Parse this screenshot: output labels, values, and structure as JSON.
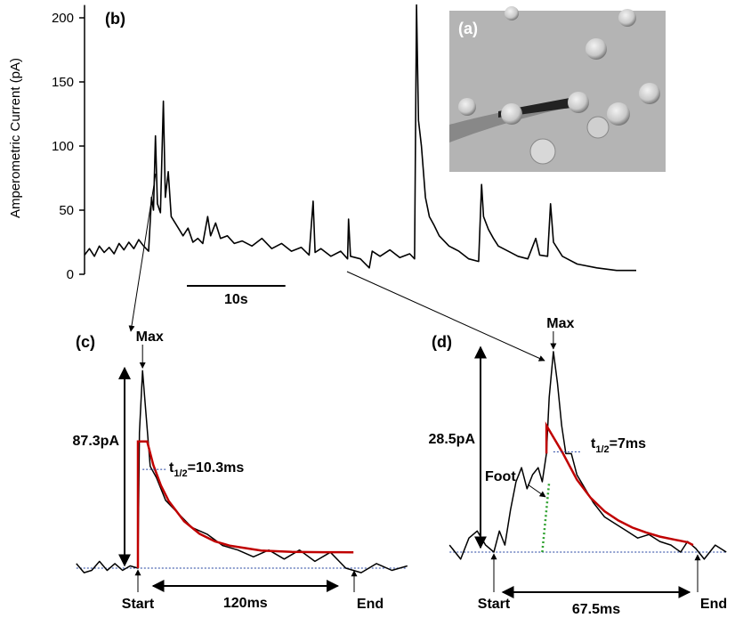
{
  "chart_data": [
    {
      "type": "line",
      "panel_label": "(b)",
      "y_label": "Amperometric Current (pA)",
      "ylim": [
        0,
        210
      ],
      "yticks": [
        0,
        50,
        100,
        150,
        200
      ],
      "xlim": [
        0,
        56
      ],
      "color": "#000000",
      "x": [
        0,
        0.5,
        1,
        1.5,
        2,
        2.5,
        3,
        3.5,
        4,
        4.5,
        5,
        5.5,
        6,
        6.5,
        6.8,
        7.0,
        7.2,
        7.4,
        7.7,
        8.0,
        8.2,
        8.5,
        8.8,
        9.2,
        9.6,
        10,
        10.5,
        11,
        11.5,
        12,
        12.5,
        12.8,
        13.3,
        13.8,
        14.5,
        15.2,
        16,
        17,
        18,
        19,
        20,
        21,
        22,
        22.8,
        23.2,
        23.4,
        24,
        25,
        26,
        26.7,
        26.8,
        27,
        28,
        28.9,
        29.2,
        30,
        31,
        32,
        33,
        33.5,
        33.7,
        33.9,
        34.2,
        34.6,
        35,
        35.5,
        36,
        37,
        38,
        39,
        40,
        40.3,
        40.5,
        41,
        41.5,
        42,
        43,
        44,
        45,
        45.8,
        46.2,
        47,
        47.3,
        47.6,
        48.5,
        50,
        52,
        54,
        56
      ],
      "values": [
        15,
        20,
        14,
        22,
        17,
        21,
        16,
        24,
        19,
        25,
        20,
        27,
        22,
        18,
        60,
        50,
        108,
        55,
        48,
        135,
        60,
        80,
        45,
        40,
        35,
        30,
        36,
        25,
        28,
        24,
        45,
        30,
        40,
        28,
        30,
        24,
        26,
        22,
        28,
        20,
        24,
        18,
        21,
        15,
        57,
        17,
        20,
        14,
        18,
        12,
        43,
        14,
        12,
        5,
        18,
        14,
        19,
        13,
        16,
        12,
        210,
        120,
        100,
        60,
        45,
        38,
        30,
        22,
        18,
        12,
        10,
        70,
        45,
        35,
        28,
        22,
        18,
        14,
        12,
        28,
        15,
        14,
        55,
        25,
        14,
        8,
        5,
        3,
        3
      ],
      "scale_bar": {
        "value": 10,
        "label": "10s"
      }
    },
    {
      "type": "line",
      "panel_label": "(c)",
      "color": "#000000",
      "x": [
        -40,
        -35,
        -30,
        -25,
        -20,
        -15,
        -10,
        -5,
        0,
        1,
        3,
        5,
        8,
        12,
        18,
        25,
        35,
        45,
        55,
        65,
        75,
        85,
        95,
        105,
        115,
        125,
        135,
        145,
        155,
        165,
        175
      ],
      "values": [
        2,
        -2,
        -1,
        3,
        -1,
        2,
        -1,
        1,
        0,
        60,
        87.3,
        70,
        45,
        40,
        30,
        25,
        18,
        15,
        10,
        8,
        5,
        8,
        4,
        8,
        3,
        7,
        0,
        -2,
        2,
        -1,
        1
      ],
      "fit": {
        "color": "#c00000",
        "x": [
          0,
          0,
          6,
          10,
          15,
          20,
          30,
          40,
          50,
          60,
          80,
          100,
          120,
          140
        ],
        "values": [
          0,
          56,
          56,
          45.6,
          36.5,
          29.7,
          20.7,
          15.2,
          11.8,
          9.9,
          7.8,
          7.2,
          7.05,
          7
        ]
      },
      "half_level": 43.65,
      "amplitude": {
        "value": 87.3,
        "label": "87.3pA"
      },
      "duration": {
        "value": 120,
        "label": "120ms"
      },
      "half_time": {
        "symbol": "t",
        "subscript": "1/2",
        "value": "=10.3ms"
      },
      "peak_label": "Max",
      "start_label": "Start",
      "end_label": "End"
    },
    {
      "type": "line",
      "panel_label": "(d)",
      "color": "#000000",
      "x": [
        -16,
        -12,
        -9,
        -6,
        -3,
        0,
        2,
        4,
        6,
        8,
        10,
        12,
        14,
        16,
        17.5,
        19,
        20,
        21.5,
        23,
        24.5,
        26,
        28,
        30,
        33,
        36,
        40,
        44,
        48,
        52,
        56,
        60,
        64,
        67.5,
        70,
        73,
        76,
        80,
        84
      ],
      "values": [
        1,
        -1,
        2,
        3,
        1,
        0,
        3,
        1,
        6,
        10,
        12,
        9,
        11,
        12,
        10,
        14,
        22,
        28.5,
        24,
        18,
        14,
        14,
        11,
        9,
        7,
        5,
        4,
        3,
        2,
        2.5,
        1.5,
        1,
        0,
        1.5,
        0.5,
        -1,
        1,
        0
      ],
      "fit": {
        "color": "#c00000",
        "x": [
          19,
          19,
          25,
          30,
          35,
          40,
          45,
          50,
          55,
          60,
          65,
          70,
          72
        ],
        "values": [
          14,
          18,
          14,
          10.3,
          7.7,
          5.8,
          4.5,
          3.5,
          2.8,
          2.2,
          1.8,
          1.4,
          1.0
        ]
      },
      "foot": {
        "label": "Foot",
        "color": "#2ca02c",
        "x": [
          17.5,
          20
        ],
        "values": [
          0,
          10
        ]
      },
      "half_level": 14.25,
      "amplitude": {
        "value": 28.5,
        "label": "28.5pA"
      },
      "duration": {
        "value": 67.5,
        "label": "67.5ms"
      },
      "half_time": {
        "symbol": "t",
        "subscript": "1/2",
        "value": "=7ms"
      },
      "peak_label": "Max",
      "start_label": "Start",
      "end_label": "End"
    }
  ],
  "image_panel": {
    "label": "(a)"
  }
}
